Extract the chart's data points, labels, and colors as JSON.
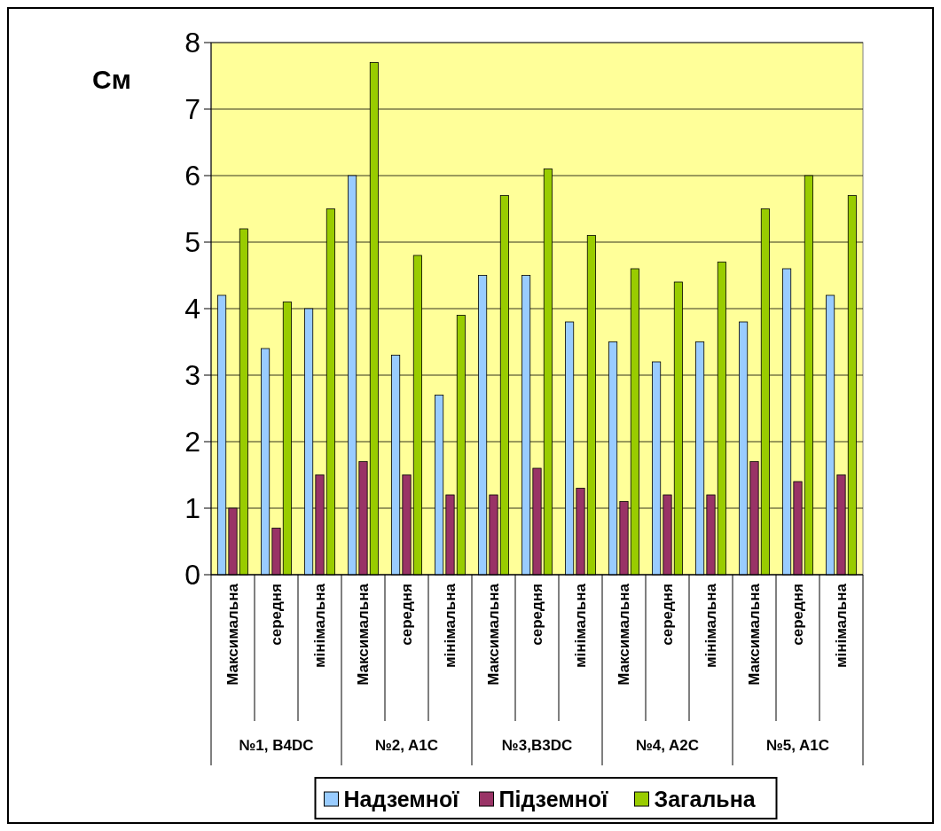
{
  "chart_data": {
    "type": "bar",
    "ylabel": "См",
    "categories": [
      "Максимальна",
      "середня",
      "мінімальна",
      "Максимальна",
      "середня",
      "мінімальна",
      "Максимальна",
      "середня",
      "мінімальна",
      "Максимальна",
      "середня",
      "мінімальна",
      "Максимальна",
      "середня",
      "мінімальна"
    ],
    "annotations": [
      "№1, B4DC",
      "№2, A1C",
      "№3,B3DC",
      "№4, A2C",
      "№5, A1C"
    ],
    "series": [
      {
        "name": "Надземної",
        "color": "#99ccff",
        "values": [
          4.2,
          3.4,
          4.0,
          6.0,
          3.3,
          2.7,
          4.5,
          4.5,
          3.8,
          3.5,
          3.2,
          3.5,
          3.8,
          4.6,
          4.2
        ]
      },
      {
        "name": "Підземної",
        "color": "#993366",
        "values": [
          1.0,
          0.7,
          1.5,
          1.7,
          1.5,
          1.2,
          1.2,
          1.6,
          1.3,
          1.1,
          1.2,
          1.2,
          1.7,
          1.4,
          1.5
        ]
      },
      {
        "name": "Загальна",
        "color": "#99cc00",
        "values": [
          5.2,
          4.1,
          5.5,
          7.7,
          4.8,
          3.9,
          5.7,
          6.1,
          5.1,
          4.6,
          4.4,
          4.7,
          5.5,
          6.0,
          5.7
        ]
      }
    ],
    "ylim": [
      0,
      8
    ],
    "yticks": [
      0,
      1,
      2,
      3,
      4,
      5,
      6,
      7,
      8
    ],
    "grid": "y",
    "legend": "bottom"
  }
}
